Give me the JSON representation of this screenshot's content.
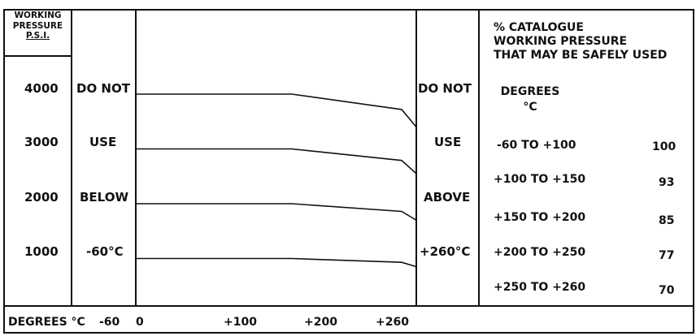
{
  "header": {
    "pressure_lines": [
      "WORKING",
      "PRESSURE",
      "P.S.I."
    ]
  },
  "left_labels": [
    "DO NOT",
    "USE",
    "BELOW",
    "-60°C"
  ],
  "right_labels": [
    "DO NOT",
    "USE",
    "ABOVE",
    "+260°C"
  ],
  "table": {
    "title_lines": [
      "% CATALOGUE",
      "WORKING PRESSURE",
      "THAT MAY BE SAFELY USED"
    ],
    "degrees_lines": [
      "DEGREES",
      "°C"
    ],
    "rows": [
      {
        "range": "-60 TO +100",
        "pct": "100"
      },
      {
        "range": "+100 TO +150",
        "pct": "93"
      },
      {
        "range": "+150 TO +200",
        "pct": "85"
      },
      {
        "range": "+200 TO +250",
        "pct": "77"
      },
      {
        "range": "+250 TO +260",
        "pct": "70"
      }
    ]
  },
  "chart_data": {
    "type": "line",
    "xlabel": "DEGREES °C",
    "x_ticks": [
      "-60",
      "0",
      "+100",
      "+200",
      "+260"
    ],
    "y_ticks": [
      "4000",
      "3000",
      "2000",
      "1000"
    ],
    "xlim": [
      -60,
      260
    ],
    "series": [
      {
        "x": [
          -60,
          150,
          250,
          260
        ],
        "y": [
          4000,
          4000,
          3720,
          3400
        ]
      },
      {
        "x": [
          -60,
          150,
          250,
          260
        ],
        "y": [
          3000,
          3000,
          2790,
          2550
        ]
      },
      {
        "x": [
          -60,
          150,
          250,
          260
        ],
        "y": [
          2000,
          2000,
          1860,
          1700
        ]
      },
      {
        "x": [
          -60,
          150,
          250,
          260
        ],
        "y": [
          1000,
          1000,
          930,
          850
        ]
      }
    ]
  }
}
